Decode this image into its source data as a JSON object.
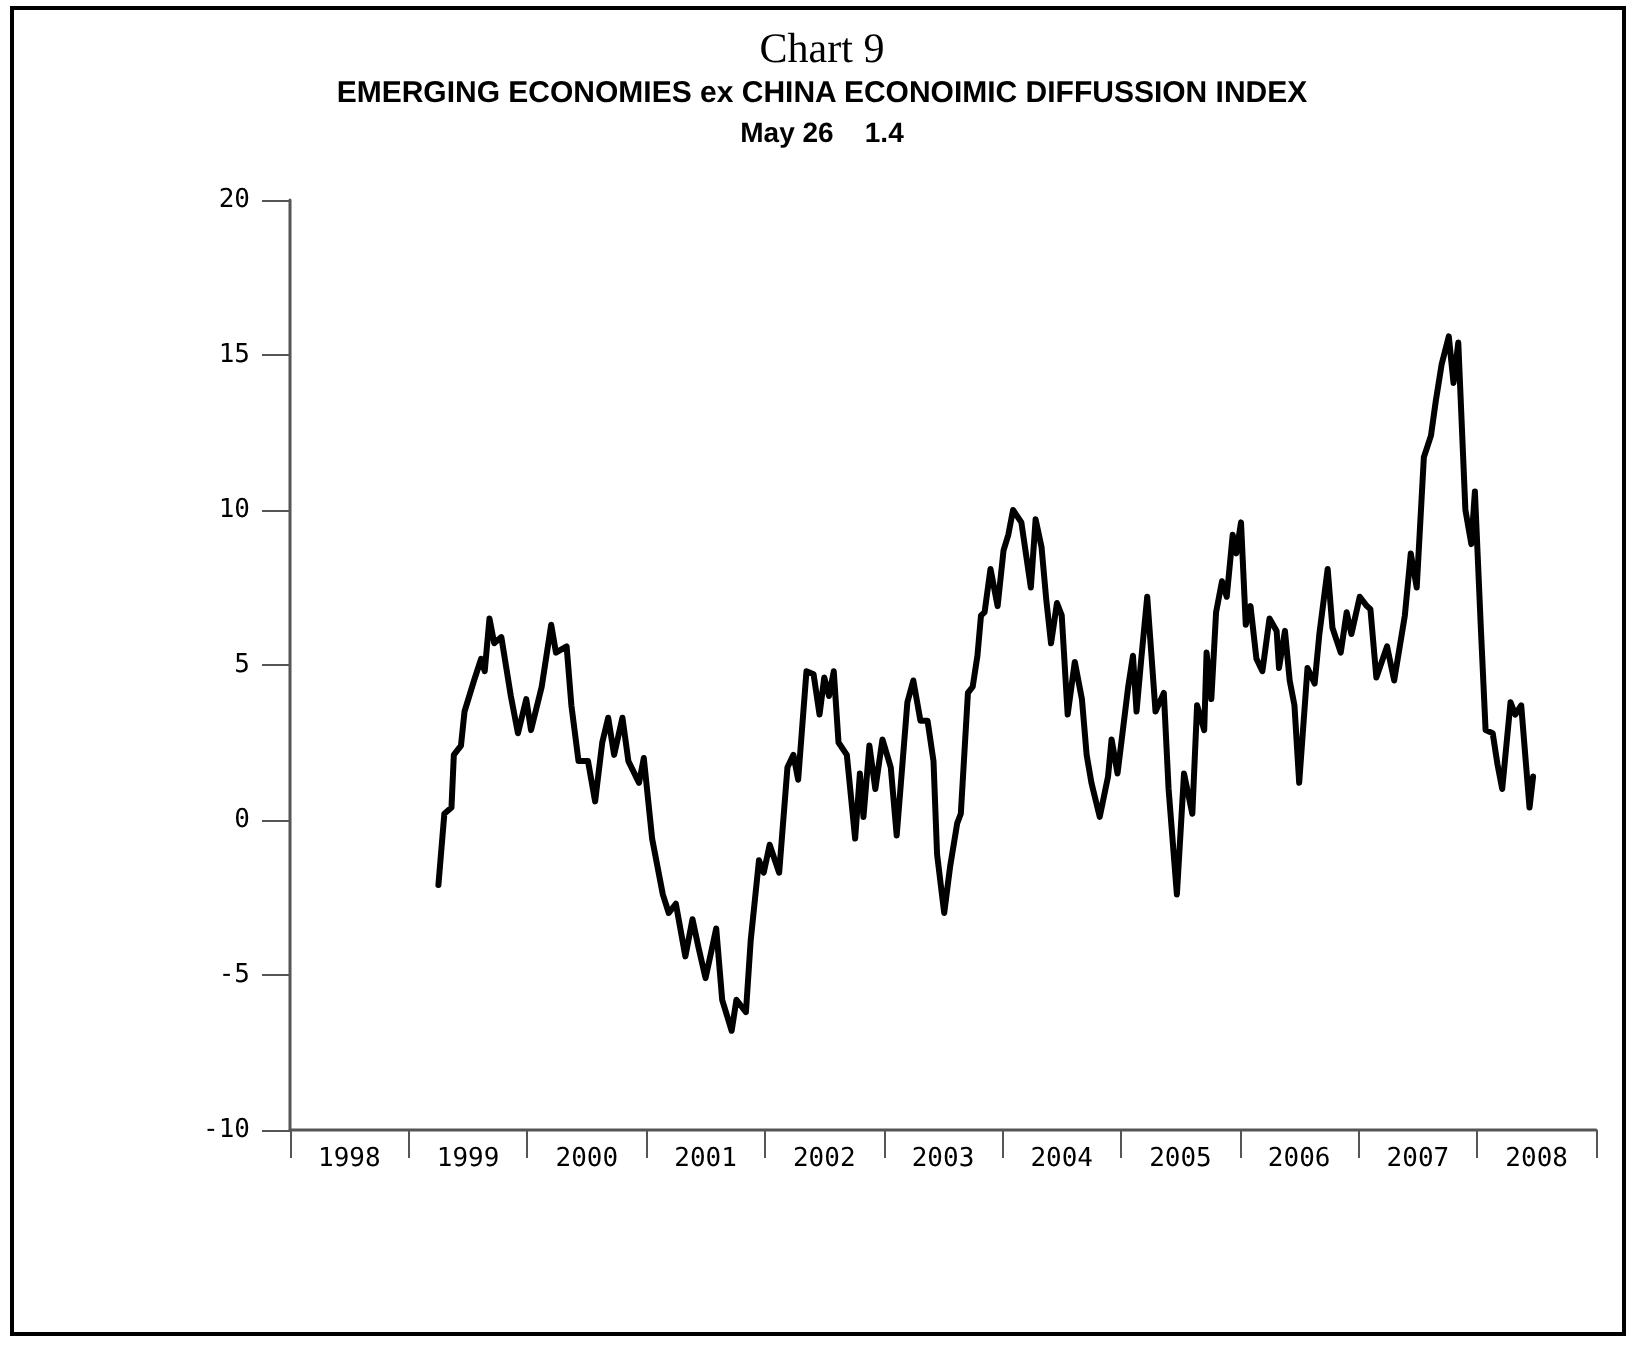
{
  "chart_data": {
    "type": "line",
    "title": "Chart 9",
    "subtitle": "EMERGING ECONOMIES ex CHINA ECONOIMIC DIFFUSSION INDEX",
    "annotations": [
      "May 26    1.4"
    ],
    "xlim": [
      1998,
      2009
    ],
    "ylim": [
      -10,
      20
    ],
    "yticks": [
      -10,
      -5,
      0,
      5,
      10,
      15,
      20
    ],
    "xticks": [
      {
        "value": 1998,
        "label": null
      },
      {
        "value": 1998.5,
        "label": "1998"
      },
      {
        "value": 1999,
        "label": null
      },
      {
        "value": 1999.5,
        "label": "1999"
      },
      {
        "value": 2000,
        "label": null
      },
      {
        "value": 2000.5,
        "label": "2000"
      },
      {
        "value": 2001,
        "label": null
      },
      {
        "value": 2001.5,
        "label": "2001"
      },
      {
        "value": 2002,
        "label": null
      },
      {
        "value": 2002.5,
        "label": "2002"
      },
      {
        "value": 2003,
        "label": null
      },
      {
        "value": 2003.5,
        "label": "2003"
      },
      {
        "value": 2004,
        "label": null
      },
      {
        "value": 2004.5,
        "label": "2004"
      },
      {
        "value": 2005,
        "label": null
      },
      {
        "value": 2005.5,
        "label": "2005"
      },
      {
        "value": 2006,
        "label": null
      },
      {
        "value": 2006.5,
        "label": "2006"
      },
      {
        "value": 2007,
        "label": null
      },
      {
        "value": 2007.5,
        "label": "2007"
      },
      {
        "value": 2008,
        "label": null
      },
      {
        "value": 2008.5,
        "label": "2008"
      },
      {
        "value": 2009,
        "label": null
      }
    ],
    "marker": "none",
    "line_style": "solid",
    "series": [
      {
        "color": "#000000",
        "x": [
          1999.25,
          1999.3,
          1999.36,
          1999.38,
          1999.44,
          1999.47,
          1999.55,
          1999.61,
          1999.64,
          1999.68,
          1999.72,
          1999.78,
          1999.86,
          1999.92,
          1999.99,
          2000.03,
          2000.12,
          2000.2,
          2000.24,
          2000.33,
          2000.37,
          2000.43,
          2000.51,
          2000.57,
          2000.63,
          2000.68,
          2000.73,
          2000.8,
          2000.85,
          2000.94,
          2000.98,
          2001.05,
          2001.14,
          2001.19,
          2001.25,
          2001.33,
          2001.39,
          2001.44,
          2001.5,
          2001.59,
          2001.64,
          2001.72,
          2001.76,
          2001.84,
          2001.88,
          2001.95,
          2001.99,
          2002.04,
          2002.12,
          2002.19,
          2002.24,
          2002.28,
          2002.35,
          2002.41,
          2002.46,
          2002.5,
          2002.54,
          2002.58,
          2002.62,
          2002.69,
          2002.76,
          2002.8,
          2002.83,
          2002.88,
          2002.93,
          2002.99,
          2003.06,
          2003.11,
          2003.2,
          2003.25,
          2003.31,
          2003.37,
          2003.42,
          2003.45,
          2003.51,
          2003.56,
          2003.62,
          2003.65,
          2003.71,
          2003.75,
          2003.79,
          2003.82,
          2003.85,
          2003.9,
          2003.96,
          2004.01,
          2004.05,
          2004.09,
          2004.16,
          2004.24,
          2004.28,
          2004.33,
          2004.37,
          2004.41,
          2004.46,
          2004.5,
          2004.55,
          2004.61,
          2004.67,
          2004.71,
          2004.75,
          2004.82,
          2004.89,
          2004.92,
          2004.97,
          2005.06,
          2005.1,
          2005.13,
          2005.17,
          2005.22,
          2005.29,
          2005.36,
          2005.4,
          2005.47,
          2005.53,
          2005.6,
          2005.64,
          2005.7,
          2005.72,
          2005.76,
          2005.8,
          2005.85,
          2005.89,
          2005.94,
          2005.97,
          2006.01,
          2006.05,
          2006.09,
          2006.14,
          2006.19,
          2006.25,
          2006.31,
          2006.33,
          2006.38,
          2006.42,
          2006.46,
          2006.5,
          2006.57,
          2006.63,
          2006.67,
          2006.74,
          2006.78,
          2006.85,
          2006.9,
          2006.94,
          2007.01,
          2007.07,
          2007.1,
          2007.15,
          2007.24,
          2007.3,
          2007.39,
          2007.44,
          2007.49,
          2007.55,
          2007.61,
          2007.65,
          2007.7,
          2007.76,
          2007.8,
          2007.84,
          2007.9,
          2007.95,
          2007.98,
          2008.03,
          2008.07,
          2008.13,
          2008.17,
          2008.21,
          2008.28,
          2008.32,
          2008.37,
          2008.44,
          2008.47
        ],
        "values": [
          -2.1,
          0.2,
          0.4,
          2.1,
          2.4,
          3.5,
          4.5,
          5.2,
          4.8,
          6.5,
          5.7,
          5.9,
          4.0,
          2.8,
          3.9,
          2.9,
          4.3,
          6.3,
          5.4,
          5.6,
          3.7,
          1.9,
          1.9,
          0.6,
          2.5,
          3.3,
          2.1,
          3.3,
          1.9,
          1.2,
          2.0,
          -0.6,
          -2.4,
          -3.0,
          -2.7,
          -4.4,
          -3.2,
          -4.1,
          -5.1,
          -3.5,
          -5.8,
          -6.8,
          -5.8,
          -6.2,
          -3.9,
          -1.3,
          -1.7,
          -0.8,
          -1.7,
          1.7,
          2.1,
          1.3,
          4.8,
          4.7,
          3.4,
          4.6,
          4.0,
          4.8,
          2.5,
          2.1,
          -0.6,
          1.5,
          0.1,
          2.4,
          1.0,
          2.6,
          1.7,
          -0.5,
          3.8,
          4.5,
          3.2,
          3.2,
          1.9,
          -1.1,
          -3.0,
          -1.5,
          -0.1,
          0.2,
          4.1,
          4.3,
          5.3,
          6.6,
          6.7,
          8.1,
          6.9,
          8.7,
          9.2,
          10.0,
          9.6,
          7.5,
          9.7,
          8.8,
          7.1,
          5.7,
          7.0,
          6.6,
          3.4,
          5.1,
          3.9,
          2.1,
          1.2,
          0.1,
          1.4,
          2.6,
          1.5,
          4.3,
          5.3,
          3.5,
          5.2,
          7.2,
          3.5,
          4.1,
          1.0,
          -2.4,
          1.5,
          0.2,
          3.7,
          2.9,
          5.4,
          3.9,
          6.7,
          7.7,
          7.2,
          9.2,
          8.6,
          9.6,
          6.3,
          6.9,
          5.2,
          4.8,
          6.5,
          6.1,
          4.9,
          6.1,
          4.5,
          3.7,
          1.2,
          4.9,
          4.4,
          6.0,
          8.1,
          6.2,
          5.4,
          6.7,
          6.0,
          7.2,
          6.9,
          6.8,
          4.6,
          5.6,
          4.5,
          6.6,
          8.6,
          7.5,
          11.7,
          12.4,
          13.5,
          14.7,
          15.6,
          14.1,
          15.4,
          10.0,
          8.9,
          10.6,
          6.2,
          2.9,
          2.8,
          1.8,
          1.0,
          3.8,
          3.4,
          3.7,
          0.4,
          1.4
        ]
      }
    ]
  }
}
